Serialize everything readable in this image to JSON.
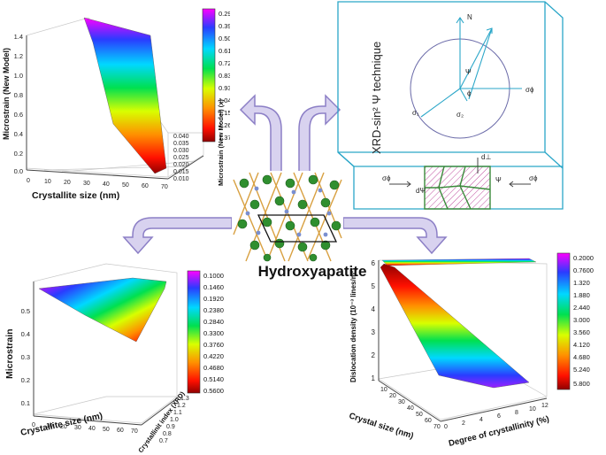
{
  "colors": {
    "spectrum": [
      "#ff00ff",
      "#2a3cff",
      "#00d8ff",
      "#00e050",
      "#d8ff00",
      "#ff9000",
      "#ff1000",
      "#900000"
    ],
    "panel_line": "#2aa6c8",
    "arrow_fill": "#d8d2ef",
    "arrow_stroke": "#8c7fc6"
  },
  "center": {
    "title": "Hydroxyapatite",
    "image_icon": "crystal-lattice-icon"
  },
  "panel_tl": {
    "chart_data": {
      "type": "surface",
      "xlabel": "Crystallite size (nm)",
      "ylabel": "Microstrain (New Model) (x)",
      "zlabel": "Microstrain (New Model)",
      "z_ticks": [
        "1.4",
        "1.2",
        "1.0",
        "0.8",
        "0.6",
        "0.4",
        "0.2",
        "0.0"
      ],
      "x_ticks": [
        "0",
        "10",
        "20",
        "30",
        "40",
        "50",
        "60",
        "70"
      ],
      "y_ticks": [
        "0.040",
        "0.035",
        "0.030",
        "0.025",
        "0.020",
        "0.015",
        "0.010"
      ],
      "colorbar": [
        "0.2900",
        "0.3980",
        "0.5060",
        "0.6140",
        "0.7220",
        "0.8300",
        "0.9380",
        "1.046",
        "1.154",
        "1.262",
        "1.370"
      ]
    }
  },
  "panel_tr": {
    "title_text": "XRD-sin² Ψ technique",
    "labels": {
      "n": "N",
      "psi": "Ψ",
      "phi": "ϕ",
      "sigma_phi_top": "σϕ",
      "sigma_1": "σ₁",
      "sigma_2": "σ₂",
      "d_perp": "d⊥",
      "d_psi": "dΨ",
      "psi_lower": "Ψ",
      "sigma_left": "σϕ",
      "sigma_right": "σϕ"
    }
  },
  "panel_bl": {
    "chart_data": {
      "type": "surface",
      "xlabel": "Crystallite size (nm)",
      "ylabel": "Crystallinit index (XRD)",
      "zlabel": "Microstrain",
      "z_ticks": [
        "0.5",
        "0.4",
        "0.3",
        "0.2",
        "0.1"
      ],
      "x_ticks": [
        "0",
        "10",
        "20",
        "30",
        "40",
        "50",
        "60",
        "70"
      ],
      "y_ticks": [
        "1.3",
        "1.2",
        "1.1",
        "1.0",
        "0.9",
        "0.8",
        "0.7"
      ],
      "colorbar": [
        "0.1000",
        "0.1460",
        "0.1920",
        "0.2380",
        "0.2840",
        "0.3300",
        "0.3760",
        "0.4220",
        "0.4680",
        "0.5140",
        "0.5600"
      ]
    }
  },
  "panel_br": {
    "chart_data": {
      "type": "surface",
      "xlabel": "Crystal size (nm)",
      "ylabel": "Degree of crystallinity (%)",
      "zlabel": "Dislocation density (10⁻³ lines/m²)",
      "z_ticks": [
        "6",
        "5",
        "4",
        "3",
        "2",
        "1"
      ],
      "x_ticks": [
        "10",
        "20",
        "30",
        "40",
        "50",
        "60",
        "70"
      ],
      "y_ticks": [
        "0",
        "2",
        "4",
        "6",
        "8",
        "10",
        "12"
      ],
      "colorbar": [
        "0.2000",
        "0.7600",
        "1.320",
        "1.880",
        "2.440",
        "3.000",
        "3.560",
        "4.120",
        "4.680",
        "5.240",
        "5.800"
      ]
    }
  }
}
